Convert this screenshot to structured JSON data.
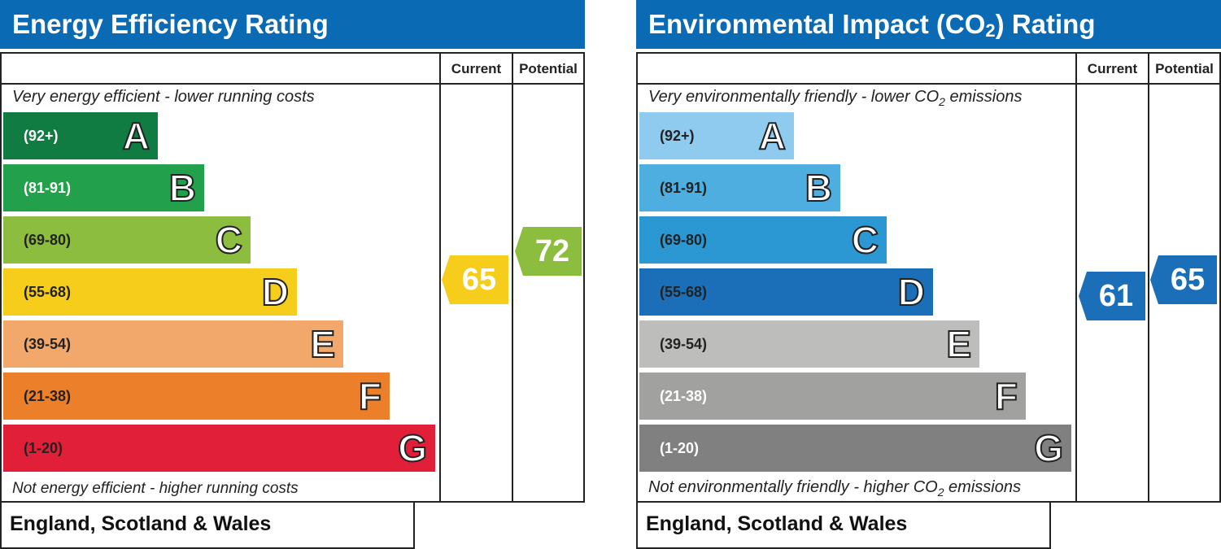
{
  "energy": {
    "title": "Energy Efficiency Rating",
    "col_current": "Current",
    "col_potential": "Potential",
    "top_caption": "Very energy efficient - lower running costs",
    "bottom_caption": "Not energy efficient - higher running costs",
    "bands": [
      {
        "range": "(92+)",
        "letter": "A",
        "color": "#107c41",
        "text_color": "#ffffff"
      },
      {
        "range": "(81-91)",
        "letter": "B",
        "color": "#22a04b",
        "text_color": "#ffffff"
      },
      {
        "range": "(69-80)",
        "letter": "C",
        "color": "#8cbd3f",
        "text_color": "#222222"
      },
      {
        "range": "(55-68)",
        "letter": "D",
        "color": "#f6cd1a",
        "text_color": "#222222"
      },
      {
        "range": "(39-54)",
        "letter": "E",
        "color": "#f2a86b",
        "text_color": "#222222"
      },
      {
        "range": "(21-38)",
        "letter": "F",
        "color": "#ec7f2a",
        "text_color": "#222222"
      },
      {
        "range": "(1-20)",
        "letter": "G",
        "color": "#e21f38",
        "text_color": "#222222"
      }
    ],
    "current": {
      "value": "65",
      "color": "#f6cd1a"
    },
    "potential": {
      "value": "72",
      "color": "#8cbd3f"
    },
    "footer": "England, Scotland & Wales"
  },
  "environment": {
    "title_main": "Environmental Impact (CO",
    "title_sub": "2",
    "title_end": ") Rating",
    "col_current": "Current",
    "col_potential": "Potential",
    "top_caption_main": "Very environmentally friendly - lower CO",
    "top_caption_sub": "2",
    "top_caption_end": " emissions",
    "bottom_caption_main": "Not environmentally friendly - higher CO",
    "bottom_caption_sub": "2",
    "bottom_caption_end": " emissions",
    "bands": [
      {
        "range": "(92+)",
        "letter": "A",
        "color": "#8ecbef",
        "text_color": "#222222"
      },
      {
        "range": "(81-91)",
        "letter": "B",
        "color": "#4eaedf",
        "text_color": "#222222"
      },
      {
        "range": "(69-80)",
        "letter": "C",
        "color": "#2b98d3",
        "text_color": "#222222"
      },
      {
        "range": "(55-68)",
        "letter": "D",
        "color": "#1b6fb8",
        "text_color": "#222222"
      },
      {
        "range": "(39-54)",
        "letter": "E",
        "color": "#bdbdbb",
        "text_color": "#222222"
      },
      {
        "range": "(21-38)",
        "letter": "F",
        "color": "#a1a1a0",
        "text_color": "#ffffff"
      },
      {
        "range": "(1-20)",
        "letter": "G",
        "color": "#808080",
        "text_color": "#ffffff"
      }
    ],
    "current": {
      "value": "61",
      "color": "#1a6fb8"
    },
    "potential": {
      "value": "65",
      "color": "#1a6fb8"
    },
    "footer": "England, Scotland & Wales"
  }
}
